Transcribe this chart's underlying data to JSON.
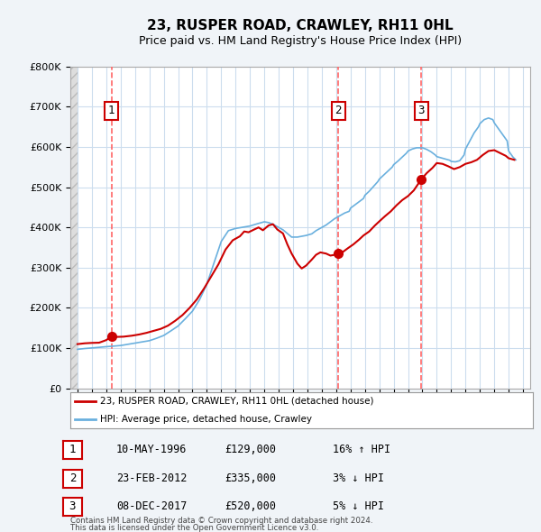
{
  "title": "23, RUSPER ROAD, CRAWLEY, RH11 0HL",
  "subtitle": "Price paid vs. HM Land Registry's House Price Index (HPI)",
  "legend_line1": "23, RUSPER ROAD, CRAWLEY, RH11 0HL (detached house)",
  "legend_line2": "HPI: Average price, detached house, Crawley",
  "footer1": "Contains HM Land Registry data © Crown copyright and database right 2024.",
  "footer2": "This data is licensed under the Open Government Licence v3.0.",
  "table": [
    {
      "num": "1",
      "date": "10-MAY-1996",
      "price": "£129,000",
      "hpi": "16% ↑ HPI"
    },
    {
      "num": "2",
      "date": "23-FEB-2012",
      "price": "£335,000",
      "hpi": "3% ↓ HPI"
    },
    {
      "num": "3",
      "date": "08-DEC-2017",
      "price": "£520,000",
      "hpi": "5% ↓ HPI"
    }
  ],
  "sale_points": [
    {
      "year": 1996.36,
      "value": 129000,
      "label": "1"
    },
    {
      "year": 2012.15,
      "value": 335000,
      "label": "2"
    },
    {
      "year": 2017.93,
      "value": 520000,
      "label": "3"
    }
  ],
  "hpi_line_color": "#6ab0de",
  "price_line_color": "#cc0000",
  "sale_dot_color": "#cc0000",
  "label_box_color": "#cc0000",
  "dashed_line_color": "#ff6666",
  "grid_color": "#ccddee",
  "plot_bg_color": "#ffffff",
  "ylim": [
    0,
    800000
  ],
  "yticks": [
    0,
    100000,
    200000,
    300000,
    400000,
    500000,
    600000,
    700000,
    800000
  ],
  "xlim_start": 1993.5,
  "xlim_end": 2025.5,
  "xticks": [
    1994,
    1995,
    1996,
    1997,
    1998,
    1999,
    2000,
    2001,
    2002,
    2003,
    2004,
    2005,
    2006,
    2007,
    2008,
    2009,
    2010,
    2011,
    2012,
    2013,
    2014,
    2015,
    2016,
    2017,
    2018,
    2019,
    2020,
    2021,
    2022,
    2023,
    2024,
    2025
  ],
  "hpi_y_by_year": {
    "1994.0": 97000,
    "1994.5": 99000,
    "1995.0": 100500,
    "1995.5": 102000,
    "1996.0": 103600,
    "1996.5": 105000,
    "1997.0": 106500,
    "1997.5": 109500,
    "1998.0": 112500,
    "1998.5": 115500,
    "1999.0": 118500,
    "1999.5": 124500,
    "2000.0": 131500,
    "2000.5": 143000,
    "2001.0": 155000,
    "2001.5": 173000,
    "2002.0": 192000,
    "2002.5": 221000,
    "2003.0": 259000,
    "2003.5": 312000,
    "2004.0": 365000,
    "2004.5": 392000,
    "2005.0": 397500,
    "2005.5": 400500,
    "2006.0": 403500,
    "2006.5": 409000,
    "2007.0": 414000,
    "2007.5": 411000,
    "2008.0": 403500,
    "2008.5": 390000,
    "2009.0": 374000,
    "2009.5": 382000,
    "2010.0": 392000,
    "2010.5": 408000,
    "2011.0": 422000,
    "2011.5": 436000,
    "2012.0": 446000,
    "2012.15": 335000,
    "2012.5": 344000,
    "2013.0": 355000,
    "2013.5": 373000,
    "2014.0": 390000,
    "2014.5": 392000,
    "2015.0": 400000,
    "2015.5": 412000,
    "2016.0": 424000,
    "2016.5": 472000,
    "2017.0": 496000,
    "2017.5": 532000,
    "2017.93": 520000,
    "2018.0": 556000,
    "2018.5": 590000,
    "2019.0": 598000,
    "2019.5": 582000,
    "2020.0": 564000,
    "2020.5": 563000,
    "2021.0": 575000,
    "2021.5": 631000,
    "2022.0": 655000,
    "2022.5": 670000,
    "2023.0": 660000,
    "2023.5": 626000,
    "2024.0": 590000,
    "2024.5": 568000
  },
  "price_x": [
    1994.0,
    1994.5,
    1995.0,
    1995.5,
    1996.0,
    1996.36,
    1996.8,
    1997.2,
    1997.8,
    1998.3,
    1998.8,
    1999.3,
    1999.8,
    2000.3,
    2000.8,
    2001.3,
    2001.8,
    2002.3,
    2002.8,
    2003.3,
    2003.8,
    2004.3,
    2004.8,
    2005.3,
    2005.6,
    2005.9,
    2006.3,
    2006.6,
    2006.9,
    2007.3,
    2007.6,
    2007.9,
    2008.3,
    2008.6,
    2008.9,
    2009.3,
    2009.6,
    2009.9,
    2010.3,
    2010.6,
    2010.9,
    2011.3,
    2011.6,
    2011.9,
    2012.15,
    2012.5,
    2012.8,
    2013.2,
    2013.6,
    2013.9,
    2014.3,
    2014.7,
    2015.0,
    2015.4,
    2015.8,
    2016.2,
    2016.6,
    2017.0,
    2017.4,
    2017.93,
    2018.3,
    2018.7,
    2019.0,
    2019.4,
    2019.8,
    2020.2,
    2020.6,
    2021.0,
    2021.4,
    2021.8,
    2022.2,
    2022.6,
    2023.0,
    2023.4,
    2023.8,
    2024.0,
    2024.4
  ],
  "price_y": [
    110000,
    112000,
    113000,
    113500,
    120000,
    129000,
    128000,
    128500,
    131000,
    134000,
    138000,
    143000,
    148000,
    156000,
    168000,
    182000,
    200000,
    221000,
    248000,
    278000,
    308000,
    345000,
    368000,
    378000,
    390000,
    388000,
    395000,
    400000,
    393000,
    405000,
    408000,
    395000,
    385000,
    358000,
    335000,
    310000,
    298000,
    305000,
    320000,
    332000,
    338000,
    335000,
    330000,
    332000,
    335000,
    340000,
    348000,
    358000,
    370000,
    380000,
    390000,
    405000,
    415000,
    428000,
    440000,
    455000,
    468000,
    478000,
    492000,
    520000,
    535000,
    548000,
    560000,
    558000,
    552000,
    545000,
    550000,
    558000,
    562000,
    568000,
    580000,
    590000,
    592000,
    585000,
    578000,
    572000,
    568000
  ]
}
